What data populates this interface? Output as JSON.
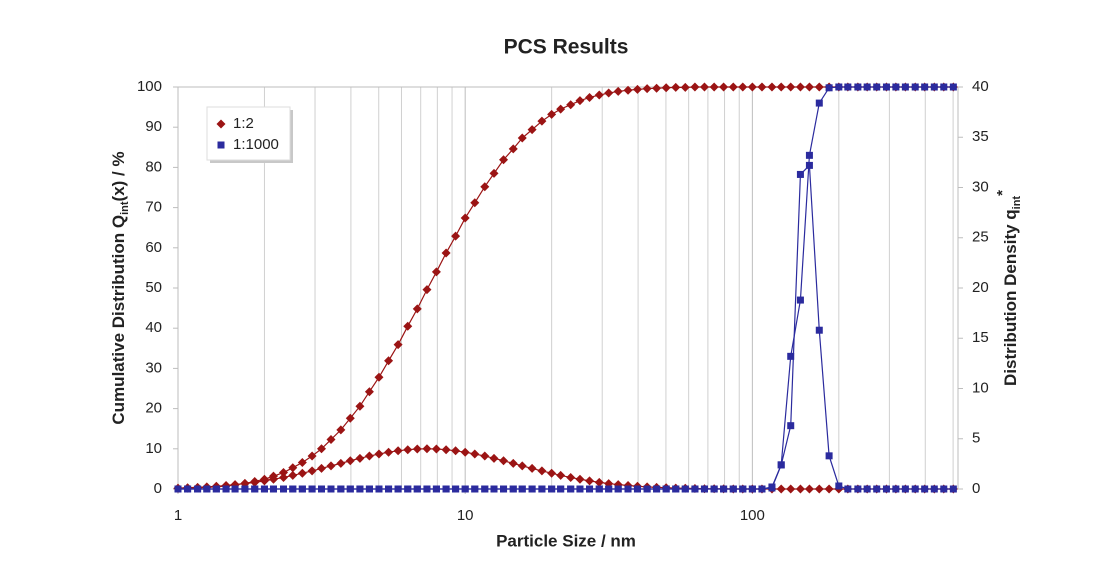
{
  "chart_data": {
    "type": "line",
    "title": "PCS Results",
    "x_label": "Particle Size / nm",
    "y_label": {
      "text": "Cumulative Distribution Q",
      "sub": "int",
      "suffix": "(x) / %"
    },
    "y2_label": {
      "text": "Distribution Density q",
      "sub": "int",
      "sup": "*"
    },
    "x_scale": "log",
    "xlim": [
      1,
      520
    ],
    "xticks": [
      1,
      10,
      100
    ],
    "x_minor_ticks": [
      2,
      3,
      4,
      5,
      6,
      7,
      8,
      9,
      20,
      30,
      40,
      50,
      60,
      70,
      80,
      90,
      200,
      300,
      400,
      500
    ],
    "ylim": [
      0,
      100
    ],
    "yticks": [
      0,
      10,
      20,
      30,
      40,
      50,
      60,
      70,
      80,
      90,
      100
    ],
    "y2lim": [
      0,
      40
    ],
    "y2ticks": [
      0,
      5,
      10,
      15,
      20,
      25,
      30,
      35,
      40
    ],
    "grid": "x",
    "legend": "top-left",
    "x": [
      1,
      1.08,
      1.17,
      1.26,
      1.36,
      1.47,
      1.58,
      1.71,
      1.85,
      2.0,
      2.15,
      2.33,
      2.51,
      2.71,
      2.93,
      3.16,
      3.41,
      3.69,
      3.98,
      4.3,
      4.64,
      5.01,
      5.41,
      5.84,
      6.31,
      6.81,
      7.36,
      7.94,
      8.58,
      9.26,
      10,
      10.8,
      11.7,
      12.6,
      13.6,
      14.7,
      15.8,
      17.1,
      18.5,
      20.0,
      21.5,
      23.3,
      25.1,
      27.1,
      29.3,
      31.6,
      34.1,
      36.9,
      39.8,
      43.0,
      46.4,
      50.1,
      54.1,
      58.4,
      63.1,
      68.1,
      73.6,
      79.4,
      85.8,
      92.6,
      100,
      108,
      117,
      126,
      136,
      147,
      158,
      171,
      185,
      200,
      215,
      233,
      251,
      271,
      293,
      316,
      341,
      369,
      398,
      430,
      464,
      501
    ],
    "series": [
      {
        "name": "1:2",
        "color": "#9b1414",
        "marker": "diamond",
        "cumulative": {
          "values": [
            0.13,
            0.19,
            0.28,
            0.39,
            0.55,
            0.75,
            1.04,
            1.39,
            1.88,
            2.44,
            3.2,
            4.1,
            5.3,
            6.6,
            8.2,
            10.0,
            12.3,
            14.7,
            17.6,
            20.6,
            24.2,
            27.8,
            31.9,
            35.9,
            40.5,
            44.8,
            49.6,
            54.0,
            58.7,
            62.9,
            67.4,
            71.2,
            75.2,
            78.5,
            81.9,
            84.6,
            87.3,
            89.4,
            91.5,
            93.2,
            94.5,
            95.6,
            96.6,
            97.4,
            98.0,
            98.5,
            98.9,
            99.2,
            99.4,
            99.6,
            99.7,
            99.8,
            99.9,
            99.9,
            100,
            100,
            100,
            100,
            100,
            100,
            100,
            100,
            100,
            100,
            100,
            100,
            100,
            100,
            100,
            100,
            100,
            100,
            100,
            100,
            100,
            100,
            100,
            100,
            100,
            100,
            100,
            100
          ]
        },
        "density": {
          "values": [
            0.09,
            0.13,
            0.16,
            0.21,
            0.27,
            0.35,
            0.44,
            0.54,
            0.66,
            0.81,
            0.97,
            1.15,
            1.35,
            1.57,
            1.8,
            2.05,
            2.3,
            2.55,
            2.81,
            3.05,
            3.28,
            3.48,
            3.66,
            3.8,
            3.91,
            3.98,
            4.0,
            3.98,
            3.91,
            3.8,
            3.66,
            3.48,
            3.28,
            3.05,
            2.81,
            2.55,
            2.3,
            2.05,
            1.8,
            1.57,
            1.35,
            1.15,
            0.97,
            0.81,
            0.66,
            0.54,
            0.44,
            0.35,
            0.27,
            0.21,
            0.16,
            0.13,
            0.09,
            0.07,
            0.05,
            0.03,
            0.02,
            0.01,
            0,
            0,
            0,
            0,
            0,
            0,
            0,
            0,
            0,
            0,
            0,
            0,
            0,
            0,
            0,
            0,
            0,
            0,
            0,
            0,
            0,
            0,
            0,
            0
          ]
        }
      },
      {
        "name": "1:1000",
        "color": "#2b2b9e",
        "marker": "square",
        "cumulative": {
          "values": [
            0,
            0,
            0,
            0,
            0,
            0,
            0,
            0,
            0,
            0,
            0,
            0,
            0,
            0,
            0,
            0,
            0,
            0,
            0,
            0,
            0,
            0,
            0,
            0,
            0,
            0,
            0,
            0,
            0,
            0,
            0,
            0,
            0,
            0,
            0,
            0,
            0,
            0,
            0,
            0,
            0,
            0,
            0,
            0,
            0,
            0,
            0,
            0,
            0,
            0,
            0,
            0,
            0,
            0,
            0,
            0,
            0,
            0,
            0,
            0,
            0,
            0,
            0.5,
            6,
            33,
            47,
            83,
            96,
            99.8,
            100,
            100,
            100,
            100,
            100,
            100,
            100,
            100,
            100,
            100,
            100,
            100,
            100
          ]
        },
        "density": {
          "values": [
            0,
            0,
            0,
            0,
            0,
            0,
            0,
            0,
            0,
            0,
            0,
            0,
            0,
            0,
            0,
            0,
            0,
            0,
            0,
            0,
            0,
            0,
            0,
            0,
            0,
            0,
            0,
            0,
            0,
            0,
            0,
            0,
            0,
            0,
            0,
            0,
            0,
            0,
            0,
            0,
            0,
            0,
            0,
            0,
            0,
            0,
            0,
            0,
            0,
            0,
            0,
            0,
            0,
            0,
            0,
            0,
            0,
            0,
            0,
            0,
            0,
            0,
            0.1,
            2.4,
            6.3,
            31.3,
            32.2,
            15.8,
            3.3,
            0.3,
            0,
            0,
            0,
            0,
            0,
            0,
            0,
            0,
            0,
            0,
            0,
            0
          ]
        }
      }
    ]
  }
}
